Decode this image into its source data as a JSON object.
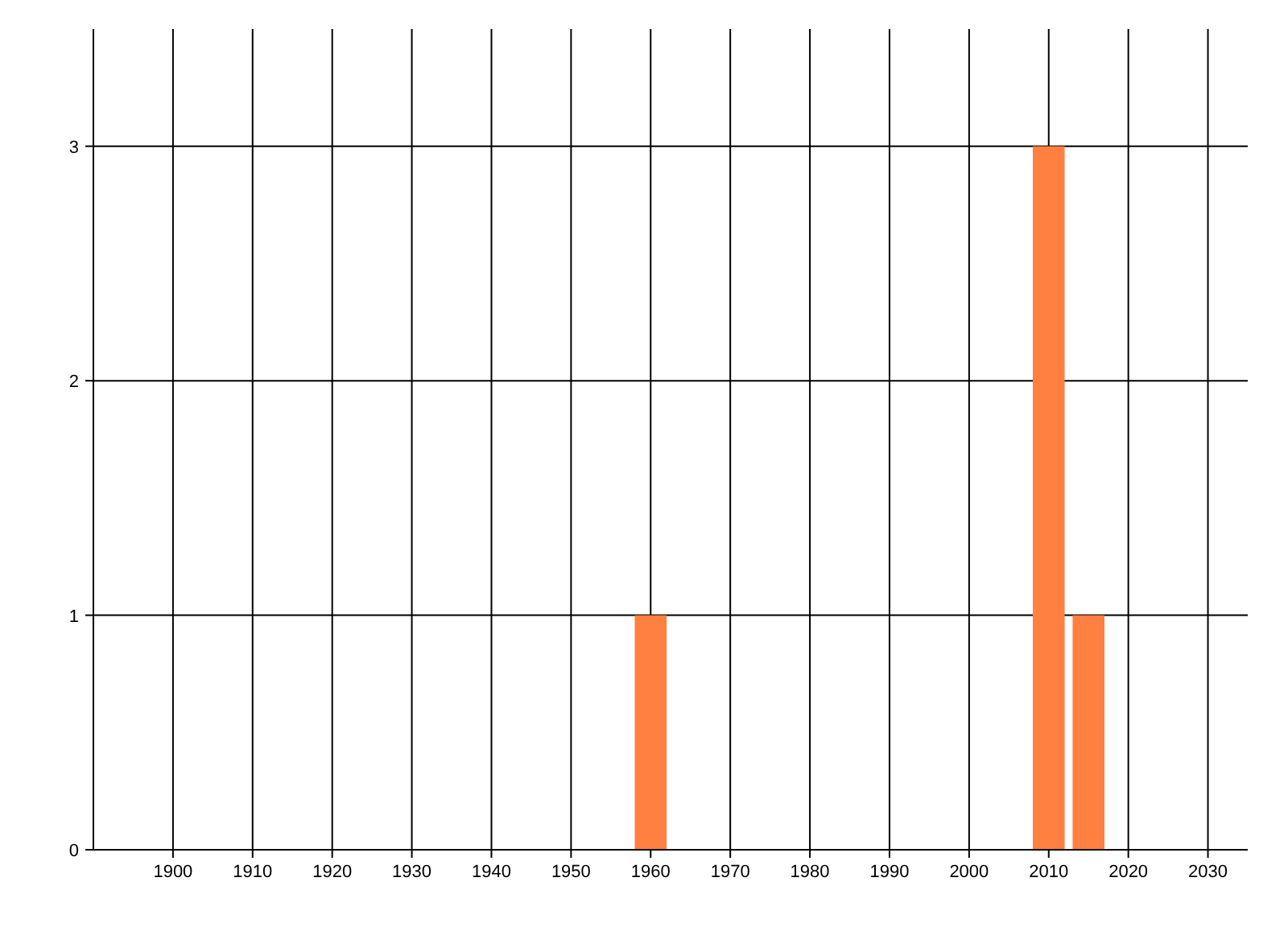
{
  "chart_data": {
    "type": "bar",
    "x": [
      1960,
      2010,
      2015
    ],
    "values": [
      1,
      3,
      1
    ],
    "color": "#ff8040",
    "xlim": [
      1890,
      2035
    ],
    "xticks": [
      1900,
      1910,
      1920,
      1930,
      1940,
      1950,
      1960,
      1970,
      1980,
      1990,
      2000,
      2010,
      2020,
      2030
    ],
    "ylim": [
      0,
      3.5
    ],
    "yticks": [
      0,
      1,
      2,
      3
    ],
    "grid": true
  }
}
